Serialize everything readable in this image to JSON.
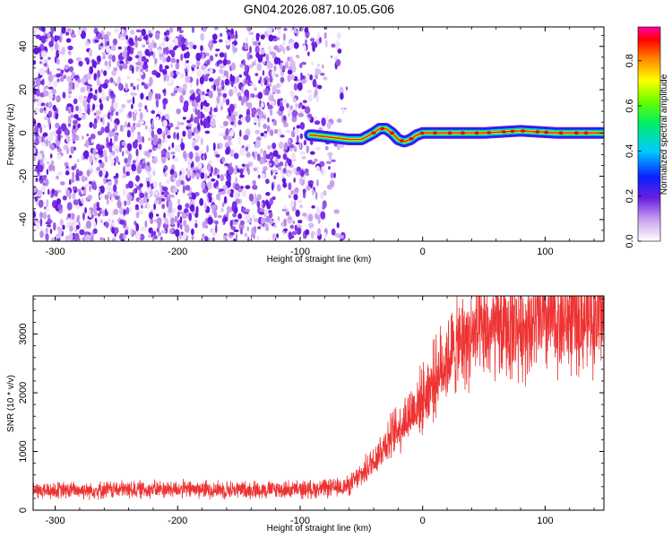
{
  "figure": {
    "title": "GN04.2026.087.10.05.G06"
  },
  "chart_data": [
    {
      "type": "heatmap",
      "title": "",
      "xlabel": "Height of straight line (km)",
      "ylabel": "Frequency (Hz)",
      "xlim": [
        -318,
        148
      ],
      "ylim": [
        -50,
        49
      ],
      "x_ticks": [
        -300,
        -200,
        -100,
        0,
        100
      ],
      "x_tick_labels": [
        "-300",
        "-200",
        "-100",
        "0",
        "100"
      ],
      "y_ticks": [
        -40,
        -20,
        0,
        20,
        40
      ],
      "y_tick_labels": [
        "-40",
        "-20",
        "0",
        "20",
        "40"
      ],
      "colorbar": {
        "label": "Normalized spectral amplitude",
        "range": [
          0,
          0.95
        ],
        "ticks": [
          0,
          0.2,
          0.4,
          0.6,
          0.8
        ],
        "tick_labels": [
          "0.0",
          "0.2",
          "0.4",
          "0.6",
          "0.8"
        ],
        "colormap": "rainbow (white-purple-blue-cyan-green-yellow-orange-red-magenta)"
      },
      "regions": [
        {
          "x_range": [
            -318,
            -60
          ],
          "description": "broadband noise, amplitudes ~0.05-0.2, spread over all frequencies"
        },
        {
          "x_range": [
            -90,
            148
          ],
          "description": "narrow signal band near 0 Hz, peak amplitude ~0.8-0.95"
        }
      ],
      "signal_ridge": {
        "x": [
          -90,
          -75,
          -60,
          -50,
          -40,
          -35,
          -30,
          -25,
          -20,
          -15,
          -10,
          -5,
          0,
          20,
          50,
          80,
          110,
          148
        ],
        "y": [
          -1,
          -2,
          -3,
          -3,
          0,
          2,
          2,
          0,
          -3,
          -4,
          -3,
          -1,
          0,
          0,
          0,
          1,
          0,
          0
        ]
      }
    },
    {
      "type": "line",
      "title": "",
      "xlabel": "Height of straight line (km)",
      "ylabel": "SNR (10 * v/v)",
      "xlim": [
        -318,
        148
      ],
      "ylim": [
        0,
        3650
      ],
      "x_ticks": [
        -300,
        -200,
        -100,
        0,
        100
      ],
      "x_tick_labels": [
        "-300",
        "-200",
        "-100",
        "0",
        "100"
      ],
      "y_ticks": [
        0,
        1000,
        2000,
        3000
      ],
      "y_tick_labels": [
        "0",
        "1000",
        "2000",
        "3000"
      ],
      "series": [
        {
          "color": "#ee3333",
          "x": [
            -318,
            -250,
            -200,
            -150,
            -100,
            -70,
            -60,
            -50,
            -40,
            -30,
            -20,
            -10,
            0,
            10,
            20,
            30,
            40,
            60,
            80,
            100,
            120,
            148
          ],
          "y": [
            330,
            350,
            360,
            350,
            350,
            380,
            420,
            600,
            850,
            1150,
            1400,
            1650,
            1900,
            2250,
            2600,
            2800,
            2950,
            3050,
            3150,
            3200,
            3250,
            3300
          ]
        }
      ]
    }
  ],
  "colors": {
    "signal": "#ee3333",
    "noise_purple": "#7a2ee8",
    "axes": "#000000"
  }
}
